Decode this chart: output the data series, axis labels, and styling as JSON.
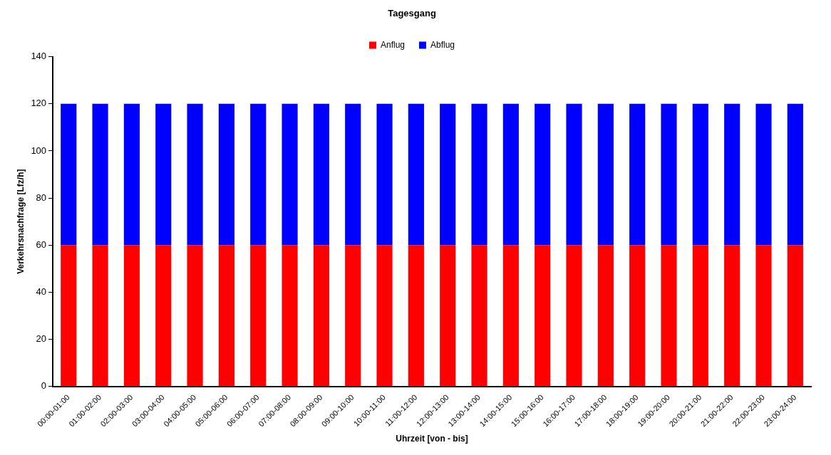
{
  "chart_data": {
    "type": "bar",
    "title": "Tagesgang",
    "xlabel": "Uhrzeit [von - bis]",
    "ylabel": "Verkehrsnachfrage [Lfz/h]",
    "categories": [
      "00:00-01:00",
      "01:00-02:00",
      "02:00-03:00",
      "03:00-04:00",
      "04:00-05:00",
      "05:00-06:00",
      "06:00-07:00",
      "07:00-08:00",
      "08:00-09:00",
      "09:00-10:00",
      "10:00-11:00",
      "11:00-12:00",
      "12:00-13:00",
      "13:00-14:00",
      "14:00-15:00",
      "15:00-16:00",
      "16:00-17:00",
      "17:00-18:00",
      "18:00-19:00",
      "19:00-20:00",
      "20:00-21:00",
      "21:00-22:00",
      "22:00-23:00",
      "23:00-24:00"
    ],
    "series": [
      {
        "name": "Anflug",
        "color": "#ff0000",
        "values": [
          60,
          60,
          60,
          60,
          60,
          60,
          60,
          60,
          60,
          60,
          60,
          60,
          60,
          60,
          60,
          60,
          60,
          60,
          60,
          60,
          60,
          60,
          60,
          60
        ]
      },
      {
        "name": "Abflug",
        "color": "#0000ff",
        "values": [
          60,
          60,
          60,
          60,
          60,
          60,
          60,
          60,
          60,
          60,
          60,
          60,
          60,
          60,
          60,
          60,
          60,
          60,
          60,
          60,
          60,
          60,
          60,
          60
        ]
      }
    ],
    "stacked": true,
    "ylim": [
      0,
      140
    ],
    "yticks": [
      0,
      20,
      40,
      60,
      80,
      100,
      120,
      140
    ],
    "grid": false,
    "legend": "top"
  }
}
